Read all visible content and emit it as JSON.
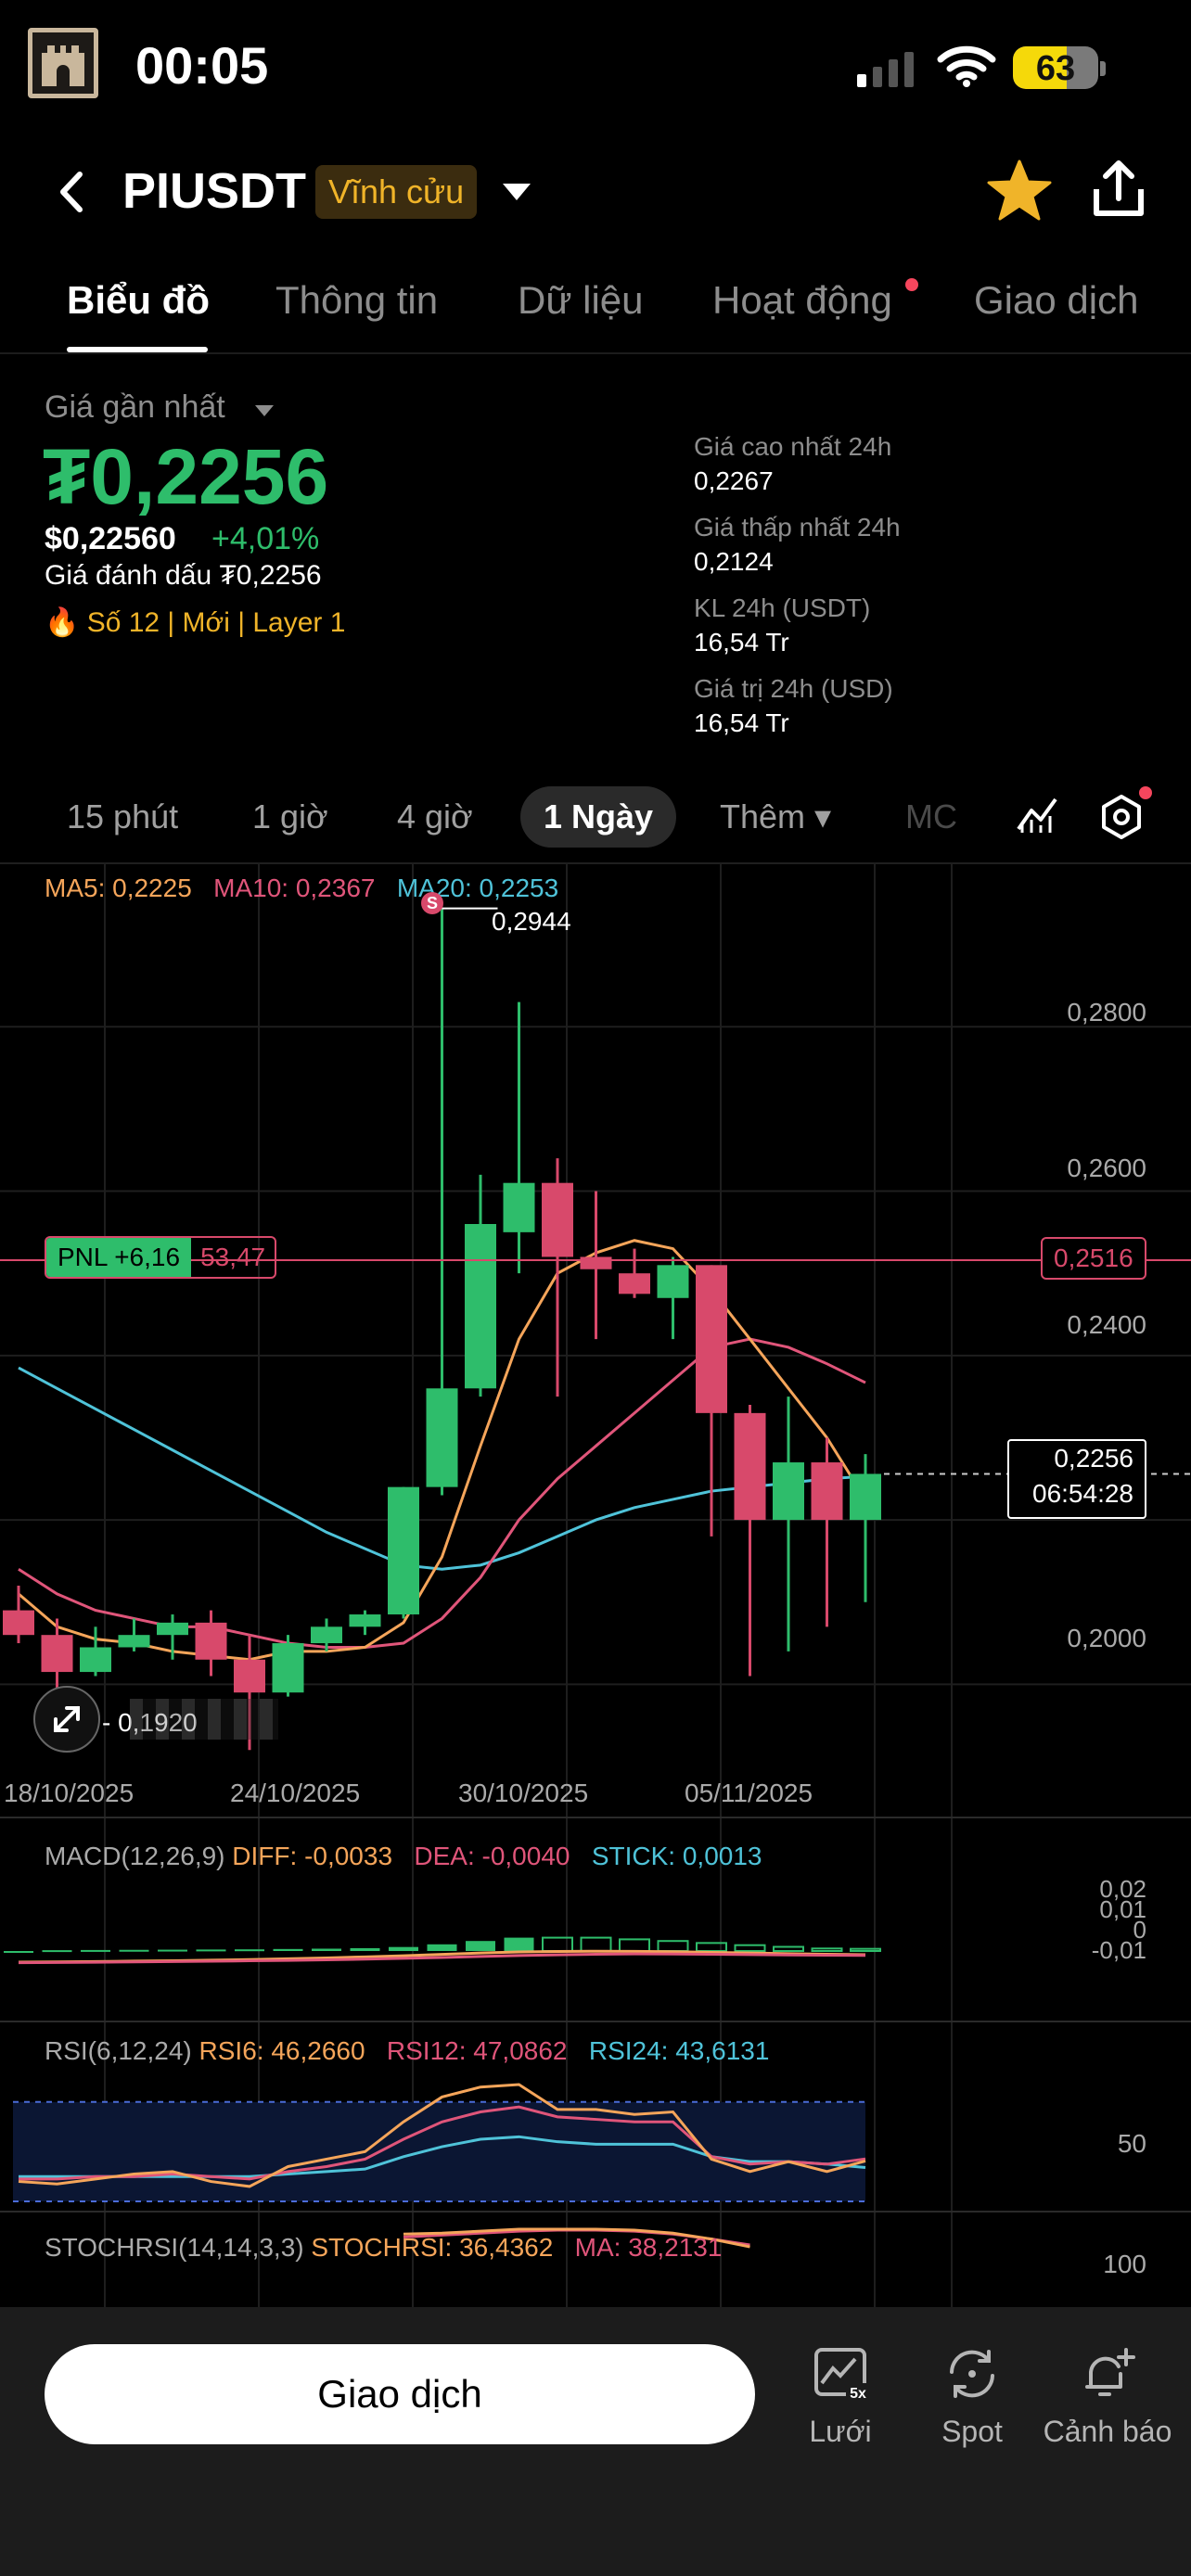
{
  "status_bar": {
    "time": "00:05",
    "battery": "63",
    "battery_level": 0.63
  },
  "header": {
    "pair": "PIUSDT",
    "badge": "Vĩnh cửu"
  },
  "tabs": [
    {
      "label": "Biểu đồ",
      "active": true
    },
    {
      "label": "Thông tin"
    },
    {
      "label": "Dữ liệu"
    },
    {
      "label": "Hoạt động",
      "dot": true
    },
    {
      "label": "Giao dịch"
    }
  ],
  "price": {
    "label": "Giá gần nhất",
    "last": "₮0,2256",
    "usd": "$0,22560",
    "change": "+4,01%",
    "mark": "Giá đánh dấu ₮0,2256",
    "tags": "🔥 Số 12  |  Mới  |  Layer 1"
  },
  "stats": [
    {
      "label": "Giá cao nhất 24h",
      "value": "0,2267"
    },
    {
      "label": "Giá thấp nhất 24h",
      "value": "0,2124"
    },
    {
      "label": "KL 24h (USDT)",
      "value": "16,54 Tr"
    },
    {
      "label": "Giá trị 24h (USD)",
      "value": "16,54 Tr"
    }
  ],
  "intervals": [
    {
      "label": "15 phút"
    },
    {
      "label": "1 giờ"
    },
    {
      "label": "4 giờ"
    },
    {
      "label": "1 Ngày",
      "active": true
    },
    {
      "label": "Thêm ▾"
    }
  ],
  "interval_fade": "MC",
  "ma_legend": {
    "ma5": "MA5: 0,2225",
    "ma10": "MA10: 0,2367",
    "ma20": "MA20: 0,2253"
  },
  "price_axis": [
    "0,2800",
    "0,2600",
    "0,2400",
    "0,2000"
  ],
  "high_marker": "0,2944",
  "low_marker": "0,1920",
  "pnl": {
    "label": "PNL +6,16",
    "value": "53,47",
    "entry": "0,2516"
  },
  "current": {
    "price": "0,2256",
    "countdown": "06:54:28"
  },
  "dates": [
    "18/10/2025",
    "24/10/2025",
    "30/10/2025",
    "05/11/2025"
  ],
  "macd": {
    "title": "MACD(12,26,9)",
    "diff": "DIFF: -0,0033",
    "dea": "DEA: -0,0040",
    "stick": "STICK: 0,0013",
    "axis": [
      "0,02",
      "0,01",
      "0",
      "-0,01"
    ]
  },
  "rsi": {
    "title": "RSI(6,12,24)",
    "rsi6": "RSI6: 46,2660",
    "rsi12": "RSI12: 47,0862",
    "rsi24": "RSI24: 43,6131",
    "axis": "50"
  },
  "stoch": {
    "title": "STOCHRSI(14,14,3,3)",
    "k": "STOCHRSI: 36,4362",
    "ma": "MA: 38,2131",
    "axis": "100"
  },
  "bottom_bar": {
    "trade": "Giao dịch",
    "grid": "Lưới",
    "spot": "Spot",
    "alert": "Cảnh báo",
    "grid_badge": "5x"
  },
  "colors": {
    "up": "#2ebd6b",
    "down": "#d8496b",
    "ma5": "#f5a55a",
    "ma10": "#e0557a",
    "ma20": "#4fc3d9",
    "accent": "#f0b429"
  },
  "chart_data": {
    "type": "candlestick",
    "ylim": [
      0.19,
      0.3
    ],
    "candles": [
      {
        "o": 0.209,
        "h": 0.212,
        "l": 0.205,
        "c": 0.206
      },
      {
        "o": 0.206,
        "h": 0.208,
        "l": 0.199,
        "c": 0.2015
      },
      {
        "o": 0.2015,
        "h": 0.207,
        "l": 0.201,
        "c": 0.2045
      },
      {
        "o": 0.2045,
        "h": 0.208,
        "l": 0.204,
        "c": 0.206
      },
      {
        "o": 0.206,
        "h": 0.2085,
        "l": 0.203,
        "c": 0.2075
      },
      {
        "o": 0.2075,
        "h": 0.209,
        "l": 0.201,
        "c": 0.203
      },
      {
        "o": 0.203,
        "h": 0.206,
        "l": 0.192,
        "c": 0.199
      },
      {
        "o": 0.199,
        "h": 0.206,
        "l": 0.1985,
        "c": 0.205
      },
      {
        "o": 0.205,
        "h": 0.208,
        "l": 0.204,
        "c": 0.207
      },
      {
        "o": 0.207,
        "h": 0.209,
        "l": 0.206,
        "c": 0.2085
      },
      {
        "o": 0.2085,
        "h": 0.224,
        "l": 0.208,
        "c": 0.224
      },
      {
        "o": 0.224,
        "h": 0.2944,
        "l": 0.223,
        "c": 0.236
      },
      {
        "o": 0.236,
        "h": 0.262,
        "l": 0.235,
        "c": 0.256
      },
      {
        "o": 0.255,
        "h": 0.283,
        "l": 0.25,
        "c": 0.261
      },
      {
        "o": 0.261,
        "h": 0.264,
        "l": 0.235,
        "c": 0.252
      },
      {
        "o": 0.252,
        "h": 0.26,
        "l": 0.242,
        "c": 0.2505
      },
      {
        "o": 0.25,
        "h": 0.253,
        "l": 0.247,
        "c": 0.2475
      },
      {
        "o": 0.247,
        "h": 0.252,
        "l": 0.242,
        "c": 0.251
      },
      {
        "o": 0.251,
        "h": 0.251,
        "l": 0.218,
        "c": 0.233
      },
      {
        "o": 0.233,
        "h": 0.234,
        "l": 0.201,
        "c": 0.22
      },
      {
        "o": 0.22,
        "h": 0.235,
        "l": 0.204,
        "c": 0.227
      },
      {
        "o": 0.227,
        "h": 0.23,
        "l": 0.207,
        "c": 0.22
      },
      {
        "o": 0.22,
        "h": 0.228,
        "l": 0.21,
        "c": 0.2256
      }
    ],
    "ma5": [
      0.211,
      0.207,
      0.2055,
      0.205,
      0.204,
      0.2035,
      0.203,
      0.204,
      0.204,
      0.2045,
      0.2075,
      0.2155,
      0.229,
      0.242,
      0.25,
      0.2525,
      0.254,
      0.253,
      0.248,
      0.242,
      0.236,
      0.23,
      0.2225
    ],
    "ma10": [
      0.214,
      0.211,
      0.209,
      0.208,
      0.207,
      0.207,
      0.206,
      0.205,
      0.2045,
      0.2045,
      0.205,
      0.208,
      0.213,
      0.22,
      0.225,
      0.229,
      0.233,
      0.237,
      0.241,
      0.242,
      0.241,
      0.239,
      0.2367
    ],
    "ma20": [
      0.2385,
      0.236,
      0.2335,
      0.231,
      0.2285,
      0.226,
      0.2235,
      0.221,
      0.2185,
      0.2165,
      0.2145,
      0.214,
      0.2145,
      0.216,
      0.218,
      0.22,
      0.2215,
      0.2225,
      0.2235,
      0.224,
      0.2245,
      0.225,
      0.2253
    ],
    "macd_hist": [
      -0.0003,
      0.0005,
      0.0006,
      0.0007,
      0.0008,
      0.0009,
      0.001,
      0.0012,
      0.0014,
      0.0017,
      0.0024,
      0.004,
      0.006,
      0.008,
      0.008,
      0.008,
      0.007,
      0.006,
      0.0048,
      0.0035,
      0.0025,
      0.0015,
      0.0013
    ],
    "macd_dif": [
      -0.01,
      -0.0098,
      -0.0095,
      -0.0091,
      -0.0087,
      -0.0082,
      -0.0077,
      -0.007,
      -0.0062,
      -0.0053,
      -0.0043,
      -0.003,
      -0.0018,
      -0.0008,
      -0.0004,
      -0.0002,
      -0.0003,
      -0.0006,
      -0.0012,
      -0.0018,
      -0.0024,
      -0.0029,
      -0.0033
    ],
    "macd_dea": [
      -0.0105,
      -0.0103,
      -0.0101,
      -0.0098,
      -0.0095,
      -0.0092,
      -0.0088,
      -0.0084,
      -0.0079,
      -0.0073,
      -0.0066,
      -0.0058,
      -0.0049,
      -0.0041,
      -0.0034,
      -0.0029,
      -0.0026,
      -0.0027,
      -0.0029,
      -0.0032,
      -0.0035,
      -0.0038,
      -0.004
    ],
    "rsi6": [
      38,
      37,
      39,
      41,
      42,
      38,
      36,
      44,
      47,
      50,
      62,
      72,
      76,
      77,
      67,
      67,
      65,
      66,
      47,
      42,
      46,
      42,
      46.27
    ],
    "rsi12": [
      39,
      39,
      40,
      40,
      41,
      40,
      39,
      42,
      44,
      47,
      55,
      62,
      66,
      68,
      64,
      63,
      62,
      62,
      48,
      45,
      46,
      45,
      47.09
    ],
    "rsi24": [
      40,
      40,
      40,
      40,
      40,
      40,
      40,
      41,
      42,
      43,
      48,
      52,
      55,
      56,
      54,
      53,
      53,
      53,
      48,
      46,
      46,
      45,
      43.61
    ],
    "stoch_k": [
      95,
      96,
      98,
      100,
      100,
      100,
      99,
      96,
      90,
      82
    ],
    "stoch_ma": [
      92,
      94,
      96,
      98,
      99,
      99,
      98,
      95,
      90,
      84
    ]
  }
}
